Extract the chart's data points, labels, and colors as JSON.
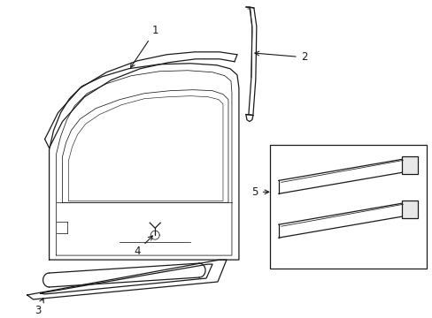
{
  "bg_color": "#ffffff",
  "line_color": "#1a1a1a",
  "linewidth": 0.9,
  "thin_lw": 0.55,
  "label_fontsize": 8.5,
  "fig_w": 4.89,
  "fig_h": 3.6,
  "dpi": 100
}
